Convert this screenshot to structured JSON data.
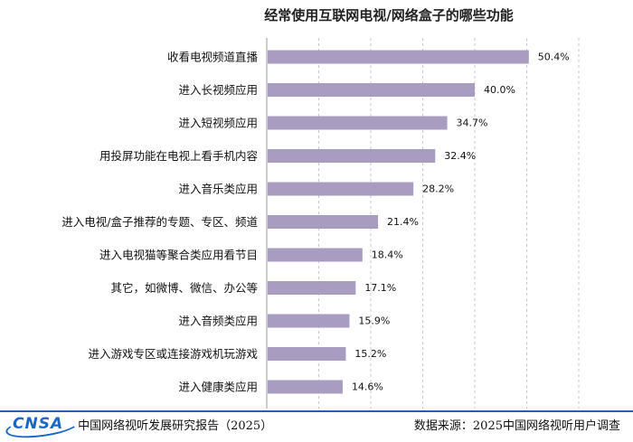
{
  "chart_data": {
    "type": "bar",
    "orientation": "horizontal",
    "title": "经常使用互联网电视/网络盒子的哪些功能",
    "categories": [
      "收看电视频道直播",
      "进入长视频应用",
      "进入短视频应用",
      "用投屏功能在电视上看手机内容",
      "进入音乐类应用",
      "进入电视/盒子推荐的专题、专区、频道",
      "进入电视猫等聚合类应用看节目",
      "其它，如微博、微信、办公等",
      "进入音频类应用",
      "进入游戏专区或连接游戏机玩游戏",
      "进入健康类应用"
    ],
    "values": [
      50.4,
      40.0,
      34.7,
      32.4,
      28.2,
      21.4,
      18.4,
      17.1,
      15.9,
      15.2,
      14.6
    ],
    "value_labels": [
      "50.4%",
      "40.0%",
      "34.7%",
      "32.4%",
      "28.2%",
      "21.4%",
      "18.4%",
      "17.1%",
      "15.9%",
      "15.2%",
      "14.6%"
    ],
    "xlim": [
      0,
      60
    ],
    "grid": "vertical dashed",
    "legend": "none",
    "bar_color": "#a99cc1"
  },
  "footer": {
    "logo_text": "CNSA",
    "report_name": "中国网络视听发展研究报告（2025）",
    "source": "数据来源：2025中国网络视听用户调查"
  }
}
